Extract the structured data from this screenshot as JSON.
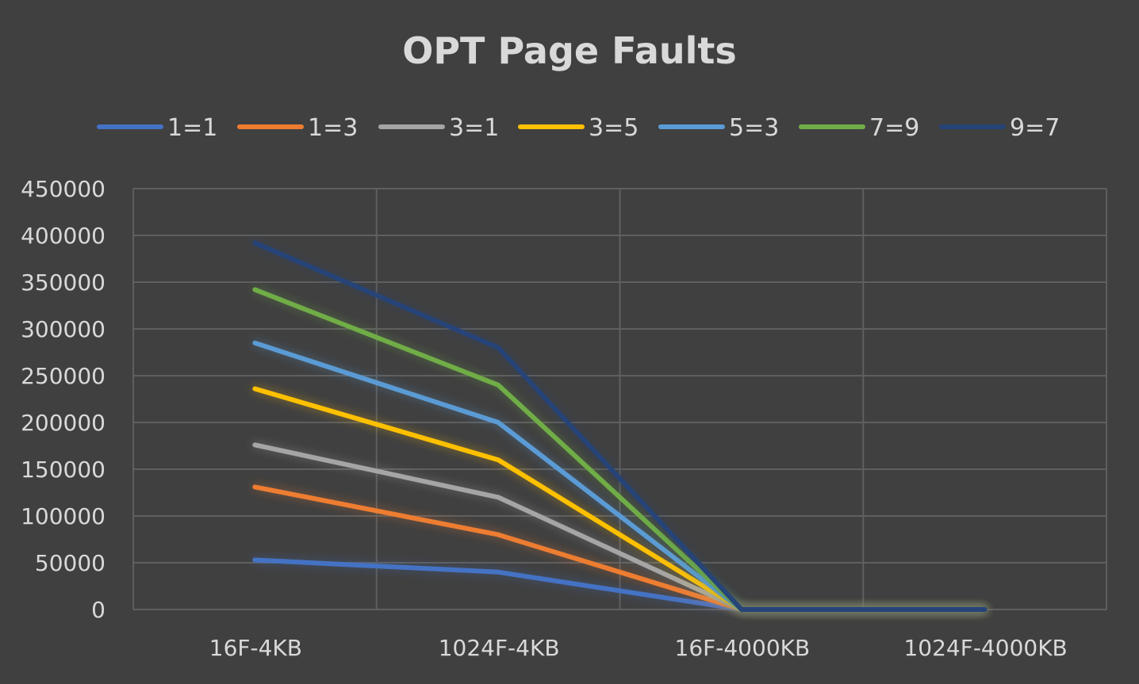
{
  "chart_data": {
    "type": "line",
    "title": "OPT Page Faults",
    "xlabel": "",
    "ylabel": "",
    "categories": [
      "16F-4KB",
      "1024F-4KB",
      "16F-4000KB",
      "1024F-4000KB"
    ],
    "ylim": [
      0,
      450000
    ],
    "yticks": [
      0,
      50000,
      100000,
      150000,
      200000,
      250000,
      300000,
      350000,
      400000,
      450000
    ],
    "grid": true,
    "legend_position": "top",
    "series": [
      {
        "name": "1=1",
        "color": "#4472c4",
        "values": [
          53000,
          40000,
          0,
          0
        ]
      },
      {
        "name": "1=3",
        "color": "#ed7d31",
        "values": [
          131000,
          80000,
          0,
          0
        ]
      },
      {
        "name": "3=1",
        "color": "#a5a5a5",
        "values": [
          176000,
          120000,
          0,
          0
        ]
      },
      {
        "name": "3=5",
        "color": "#ffc000",
        "values": [
          236000,
          160000,
          0,
          0
        ]
      },
      {
        "name": "5=3",
        "color": "#5b9bd5",
        "values": [
          285000,
          200000,
          0,
          0
        ]
      },
      {
        "name": "7=9",
        "color": "#70ad47",
        "values": [
          342000,
          240000,
          0,
          0
        ]
      },
      {
        "name": "9=7",
        "color": "#264478",
        "values": [
          392000,
          280000,
          0,
          0
        ]
      }
    ]
  }
}
